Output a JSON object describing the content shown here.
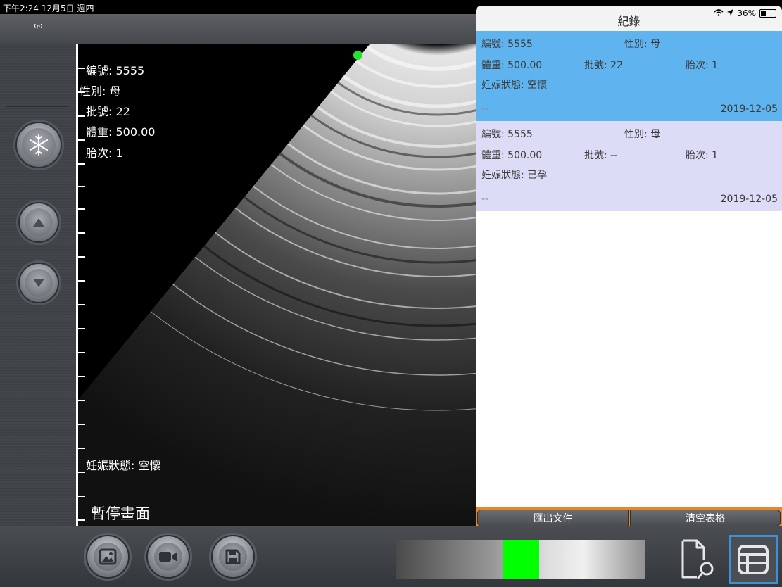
{
  "status_bar": {
    "time": "下午2:24  12月5日 週四",
    "battery": "36%",
    "battery_level": 0.36
  },
  "top_bar": {
    "signal_icon": "wireless-probe-icon"
  },
  "left_panel": {
    "buttons": [
      {
        "name": "freeze-button",
        "icon": "snowflake-icon"
      },
      {
        "name": "up-button",
        "icon": "triangle-up-icon"
      },
      {
        "name": "down-button",
        "icon": "triangle-down-icon"
      }
    ]
  },
  "overlay": {
    "id_line": "編號: 5555",
    "sex_line": "性別: 母",
    "batch_line": "批號: 22",
    "weight_line": "體重: 500.00",
    "parity_line": "胎次: 1",
    "pregnancy_line": "妊娠狀態: 空懷",
    "paused_label": "暫停畫面"
  },
  "record_panel": {
    "title": "紀錄",
    "records": [
      {
        "id": "編號: 5555",
        "sex": "性別: 母",
        "weight": "體重: 500.00",
        "batch": "批號: 22",
        "parity": "胎次: 1",
        "pregnancy": "妊娠狀態: 空懷",
        "note": "--",
        "date": "2019-12-05",
        "bg": "#5fb4f0"
      },
      {
        "id": "編號: 5555",
        "sex": "性別: 母",
        "weight": "體重: 500.00",
        "batch": "批號: --",
        "parity": "胎次: 1",
        "pregnancy": "妊娠狀態: 已孕",
        "note": "--",
        "date": "2019-12-05",
        "bg": "#dcdcf6"
      }
    ],
    "export_label": "匯出文件",
    "clear_label": "清空表格"
  },
  "bottom_bar": {
    "buttons": [
      {
        "name": "gallery-button",
        "icon": "image-icon"
      },
      {
        "name": "video-button",
        "icon": "video-camera-icon"
      },
      {
        "name": "save-button",
        "icon": "floppy-disk-icon"
      }
    ],
    "gain_slider_value": 0.5,
    "doc_search_icon": "document-search-icon",
    "table_icon": "table-list-icon"
  },
  "colors": {
    "accent_orange": "#e9862b",
    "selected_record": "#5fb4f0",
    "record_alt": "#dcdcf6",
    "gain_marker": "#00ff00",
    "table_button_border": "#3f8fd8"
  }
}
